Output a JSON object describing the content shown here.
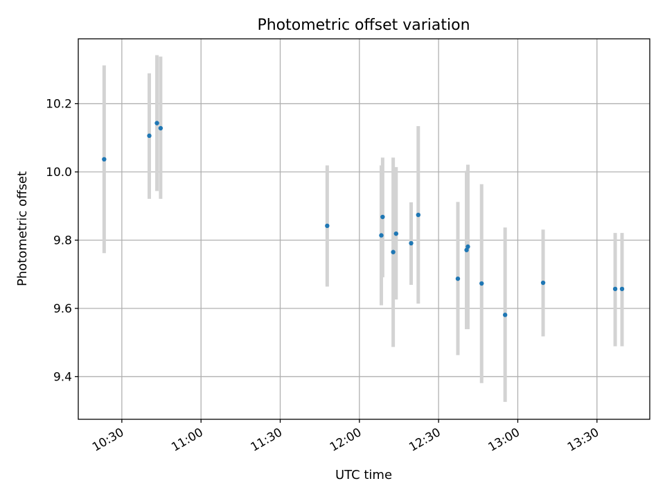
{
  "chart_data": {
    "type": "scatter",
    "title": "Photometric offset variation",
    "xlabel": "UTC time",
    "ylabel": "Photometric offset",
    "x_unit": "minutes since 10:00 UTC",
    "xlim": [
      13.5,
      230
    ],
    "ylim": [
      9.275,
      10.39
    ],
    "x_ticks": [
      {
        "value": 30,
        "label": "10:30"
      },
      {
        "value": 60,
        "label": "11:00"
      },
      {
        "value": 90,
        "label": "11:30"
      },
      {
        "value": 120,
        "label": "12:00"
      },
      {
        "value": 150,
        "label": "12:30"
      },
      {
        "value": 180,
        "label": "13:00"
      },
      {
        "value": 210,
        "label": "13:30"
      }
    ],
    "y_ticks": [
      {
        "value": 9.4,
        "label": "9.4"
      },
      {
        "value": 9.6,
        "label": "9.6"
      },
      {
        "value": 9.8,
        "label": "9.8"
      },
      {
        "value": 10.0,
        "label": "10.0"
      },
      {
        "value": 10.2,
        "label": "10.2"
      }
    ],
    "grid": true,
    "series": [
      {
        "name": "offset",
        "color": "#1f77b4",
        "errorbar_color": "#d3d3d3",
        "points": [
          {
            "x": 23.3,
            "y": 10.037,
            "err_low": 9.762,
            "err_high": 10.312
          },
          {
            "x": 40.4,
            "y": 10.106,
            "err_low": 9.921,
            "err_high": 10.289
          },
          {
            "x": 43.3,
            "y": 10.143,
            "err_low": 9.944,
            "err_high": 10.342
          },
          {
            "x": 44.7,
            "y": 10.128,
            "err_low": 9.921,
            "err_high": 10.338
          },
          {
            "x": 107.8,
            "y": 9.842,
            "err_low": 9.664,
            "err_high": 10.019
          },
          {
            "x": 128.3,
            "y": 9.814,
            "err_low": 9.609,
            "err_high": 10.019
          },
          {
            "x": 128.8,
            "y": 9.868,
            "err_low": 9.691,
            "err_high": 10.042
          },
          {
            "x": 132.8,
            "y": 9.765,
            "err_low": 9.487,
            "err_high": 10.042
          },
          {
            "x": 133.9,
            "y": 9.819,
            "err_low": 9.626,
            "err_high": 10.014
          },
          {
            "x": 139.6,
            "y": 9.791,
            "err_low": 9.669,
            "err_high": 9.911
          },
          {
            "x": 142.3,
            "y": 9.874,
            "err_low": 9.614,
            "err_high": 10.134
          },
          {
            "x": 157.3,
            "y": 9.687,
            "err_low": 9.463,
            "err_high": 9.912
          },
          {
            "x": 160.6,
            "y": 9.771,
            "err_low": 9.539,
            "err_high": 10.003
          },
          {
            "x": 161.1,
            "y": 9.781,
            "err_low": 9.539,
            "err_high": 10.021
          },
          {
            "x": 166.3,
            "y": 9.673,
            "err_low": 9.381,
            "err_high": 9.964
          },
          {
            "x": 175.2,
            "y": 9.581,
            "err_low": 9.326,
            "err_high": 9.837
          },
          {
            "x": 189.6,
            "y": 9.675,
            "err_low": 9.518,
            "err_high": 9.831
          },
          {
            "x": 216.9,
            "y": 9.657,
            "err_low": 9.489,
            "err_high": 9.821
          },
          {
            "x": 219.5,
            "y": 9.657,
            "err_low": 9.489,
            "err_high": 9.821
          }
        ]
      }
    ]
  }
}
